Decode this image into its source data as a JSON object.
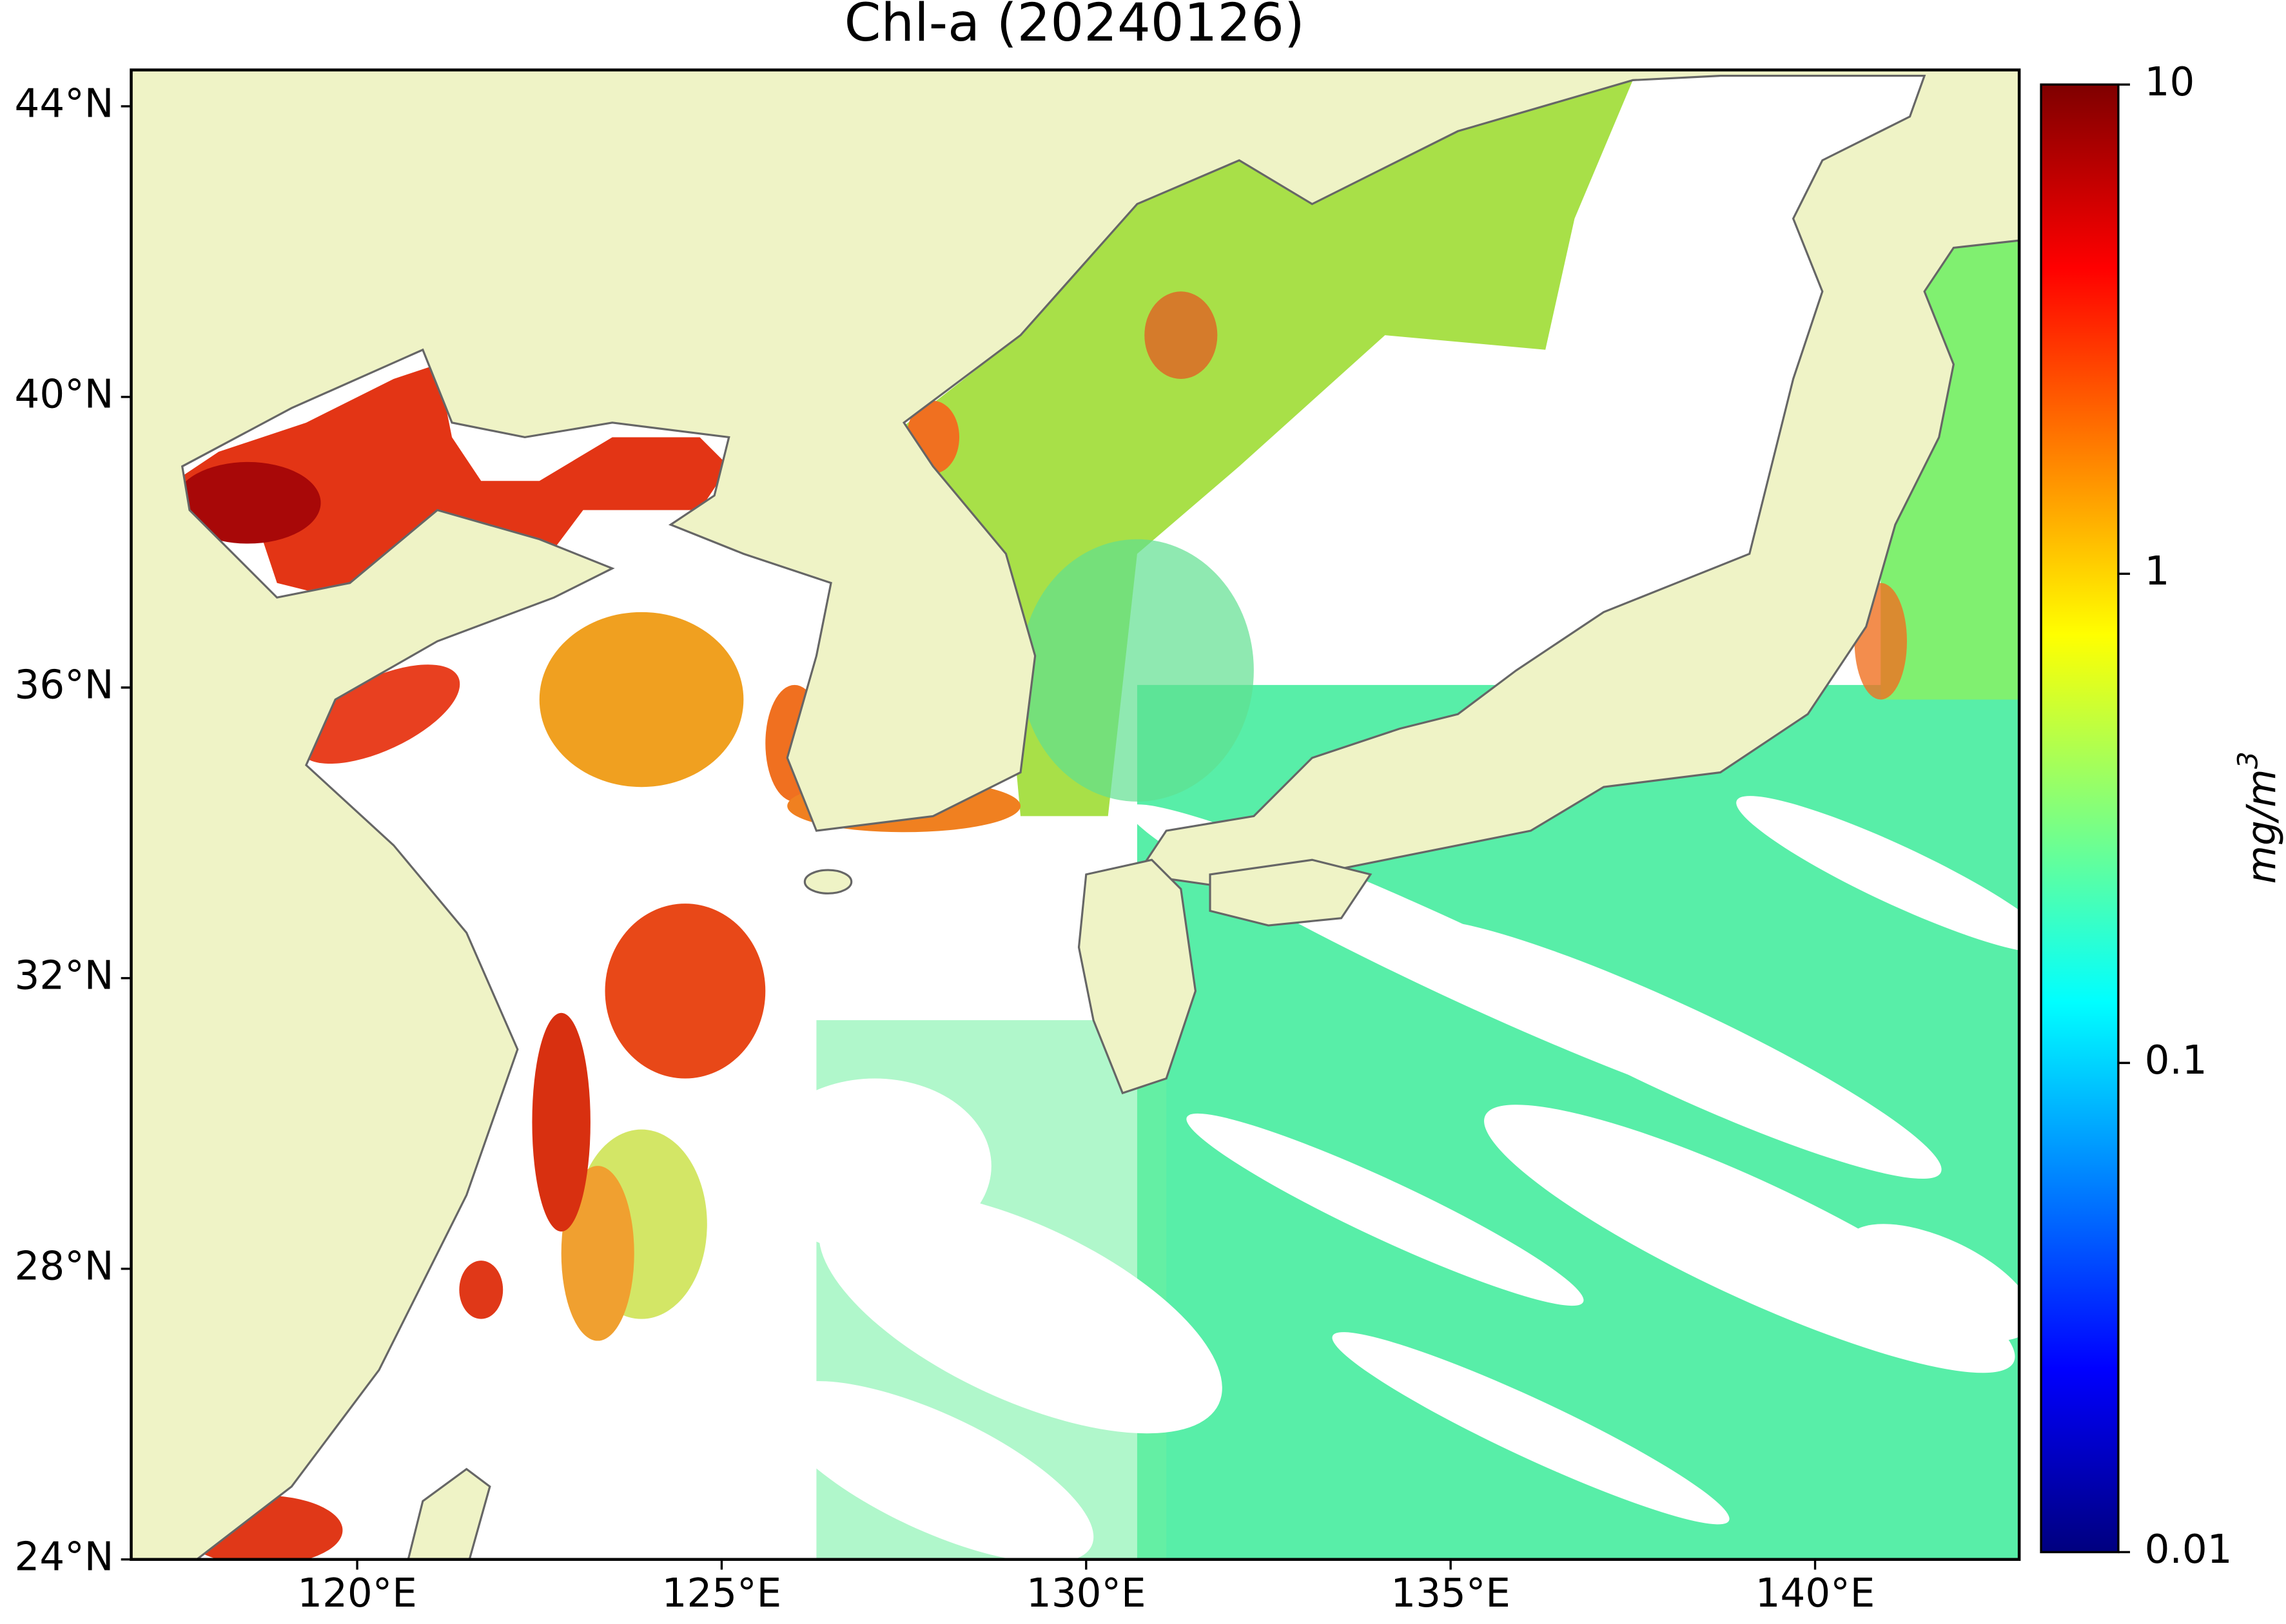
{
  "title": "Chl-a (20240126)",
  "map": {
    "lonlim": [
      116.9,
      142.8
    ],
    "latlim": [
      24,
      44.5
    ],
    "lonticks": [
      {
        "value": 120,
        "label": "120°E"
      },
      {
        "value": 125,
        "label": "125°E"
      },
      {
        "value": 130,
        "label": "130°E"
      },
      {
        "value": 135,
        "label": "135°E"
      },
      {
        "value": 140,
        "label": "140°E"
      }
    ],
    "latticks": [
      {
        "value": 24,
        "label": "24°N"
      },
      {
        "value": 28,
        "label": "28°N"
      },
      {
        "value": 32,
        "label": "32°N"
      },
      {
        "value": 36,
        "label": "36°N"
      },
      {
        "value": 40,
        "label": "40°N"
      },
      {
        "value": 44,
        "label": "44°N"
      }
    ]
  },
  "colorbar": {
    "lim": [
      0.01,
      10
    ],
    "ticks": [
      0.01,
      0.1,
      1,
      10
    ],
    "log_scale": true,
    "colormap": "jet",
    "label": {
      "text": "mg/m",
      "superscript": "3"
    }
  }
}
